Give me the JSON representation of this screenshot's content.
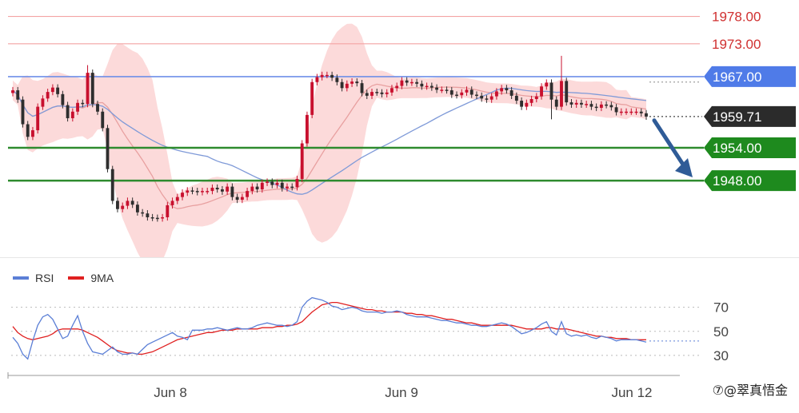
{
  "chart_data": [
    {
      "type": "candlestick",
      "ylim": [
        1934.0,
        1981.0
      ],
      "x_ticks": [
        "Jun 8",
        "Jun 9",
        "Jun 12"
      ],
      "levels": [
        {
          "label": "1978.00",
          "value": 1978.0,
          "kind": "resistance"
        },
        {
          "label": "1973.00",
          "value": 1973.0,
          "kind": "resistance"
        },
        {
          "label": "1967.00",
          "value": 1967.0,
          "kind": "pivot"
        },
        {
          "label": "1954.00",
          "value": 1954.0,
          "kind": "support"
        },
        {
          "label": "1948.00",
          "value": 1948.0,
          "kind": "support"
        }
      ],
      "current_price": {
        "label": "1959.71",
        "value": 1959.71
      },
      "closes": [
        1964.5,
        1962.8,
        1958.3,
        1956.0,
        1957.2,
        1961.5,
        1963.0,
        1964.2,
        1965.0,
        1963.8,
        1961.8,
        1959.4,
        1960.6,
        1962.2,
        1962.0,
        1967.7,
        1962.0,
        1960.6,
        1957.6,
        1950.1,
        1944.3,
        1942.8,
        1943.4,
        1944.3,
        1943.6,
        1942.2,
        1942.0,
        1941.3,
        1941.2,
        1941.1,
        1941.3,
        1943.5,
        1944.3,
        1945.0,
        1945.8,
        1946.2,
        1946.1,
        1945.9,
        1946.1,
        1946.1,
        1946.7,
        1946.4,
        1946.0,
        1946.9,
        1945.0,
        1944.5,
        1945.0,
        1946.1,
        1946.9,
        1946.4,
        1947.6,
        1947.8,
        1947.2,
        1947.6,
        1946.6,
        1946.9,
        1946.8,
        1948.3,
        1954.8,
        1960.0,
        1966.0,
        1966.9,
        1967.3,
        1967.3,
        1966.8,
        1966.0,
        1964.9,
        1965.7,
        1966.1,
        1965.8,
        1964.0,
        1963.5,
        1964.2,
        1964.1,
        1963.8,
        1964.1,
        1964.9,
        1965.3,
        1966.3,
        1965.9,
        1966.0,
        1965.7,
        1965.2,
        1965.3,
        1965.0,
        1964.6,
        1964.6,
        1964.5,
        1963.7,
        1963.6,
        1964.1,
        1964.6,
        1963.7,
        1963.5,
        1963.0,
        1962.8,
        1963.4,
        1964.3,
        1964.9,
        1964.5,
        1963.5,
        1962.6,
        1961.5,
        1962.2,
        1962.9,
        1963.4,
        1965.2,
        1965.9,
        1962.8,
        1961.5,
        1966.2,
        1962.3,
        1961.9,
        1962.2,
        1961.9,
        1962.0,
        1961.5,
        1961.3,
        1961.9,
        1961.8,
        1961.4,
        1960.5,
        1960.6,
        1960.6,
        1960.6,
        1960.6,
        1960.3,
        1959.7
      ],
      "rsi": [
        45,
        40,
        31,
        27,
        42,
        55,
        62,
        64,
        60,
        52,
        44,
        46,
        55,
        63,
        50,
        40,
        33,
        32,
        31,
        34,
        37,
        33,
        31,
        31,
        32,
        31,
        35,
        39,
        41,
        43,
        45,
        47,
        49,
        46,
        45,
        43,
        51,
        51,
        51,
        52,
        52,
        53,
        52,
        51,
        52,
        53,
        52,
        52,
        53,
        55,
        56,
        57,
        56,
        55,
        55,
        54,
        55,
        58,
        70,
        75,
        78,
        77,
        76,
        74,
        71,
        70,
        68,
        69,
        70,
        69,
        67,
        66,
        66,
        66,
        65,
        66,
        66,
        67,
        66,
        64,
        63,
        62,
        62,
        62,
        61,
        60,
        59,
        59,
        58,
        57,
        57,
        56,
        55,
        55,
        54,
        54,
        55,
        56,
        57,
        56,
        54,
        51,
        48,
        49,
        51,
        53,
        56,
        58,
        50,
        47,
        58,
        48,
        46,
        47,
        46,
        47,
        45,
        44,
        46,
        45,
        44,
        42,
        43,
        43,
        43,
        43,
        42,
        41
      ],
      "rsi_ma": [
        54,
        49,
        46,
        44,
        43,
        44,
        45,
        46,
        48,
        51,
        52,
        52,
        52,
        52,
        51,
        49,
        47,
        45,
        42,
        39,
        36,
        34,
        33,
        32,
        32,
        31,
        31,
        32,
        33,
        35,
        37,
        39,
        41,
        43,
        44,
        45,
        46,
        47,
        48,
        49,
        49,
        50,
        51,
        51,
        51,
        52,
        52,
        52,
        52,
        52,
        53,
        53,
        53,
        54,
        54,
        55,
        55,
        56,
        58,
        62,
        66,
        69,
        72,
        73,
        74,
        74,
        73,
        72,
        71,
        70,
        69,
        68,
        68,
        67,
        67,
        66,
        66,
        66,
        66,
        65,
        65,
        64,
        64,
        63,
        63,
        62,
        61,
        60,
        60,
        59,
        58,
        57,
        57,
        56,
        55,
        55,
        55,
        55,
        55,
        55,
        55,
        54,
        53,
        52,
        52,
        52,
        52,
        53,
        53,
        52,
        52,
        52,
        51,
        50,
        49,
        48,
        47,
        46,
        46,
        45,
        45,
        44,
        44,
        44,
        43,
        43,
        43,
        43
      ],
      "rsi_ylim": [
        20,
        85
      ],
      "rsi_ticks": [
        70,
        50,
        30
      ],
      "legend": [
        {
          "name": "RSI",
          "color": "#5b7fd6"
        },
        {
          "name": "9MA",
          "color": "#e02020"
        }
      ]
    }
  ],
  "watermark": "⑦@翠真悟金",
  "colors": {
    "up": "#c8102e",
    "down": "#2e2e2e",
    "band": "#fbd3d3",
    "ma_fast": "#e8a0a0",
    "ma_slow": "#7f9ad8",
    "resistance": "#f4a3a3",
    "pivot": "#6f8fe8",
    "support": "#2e8b2e",
    "arrow": "#2f5b97"
  }
}
